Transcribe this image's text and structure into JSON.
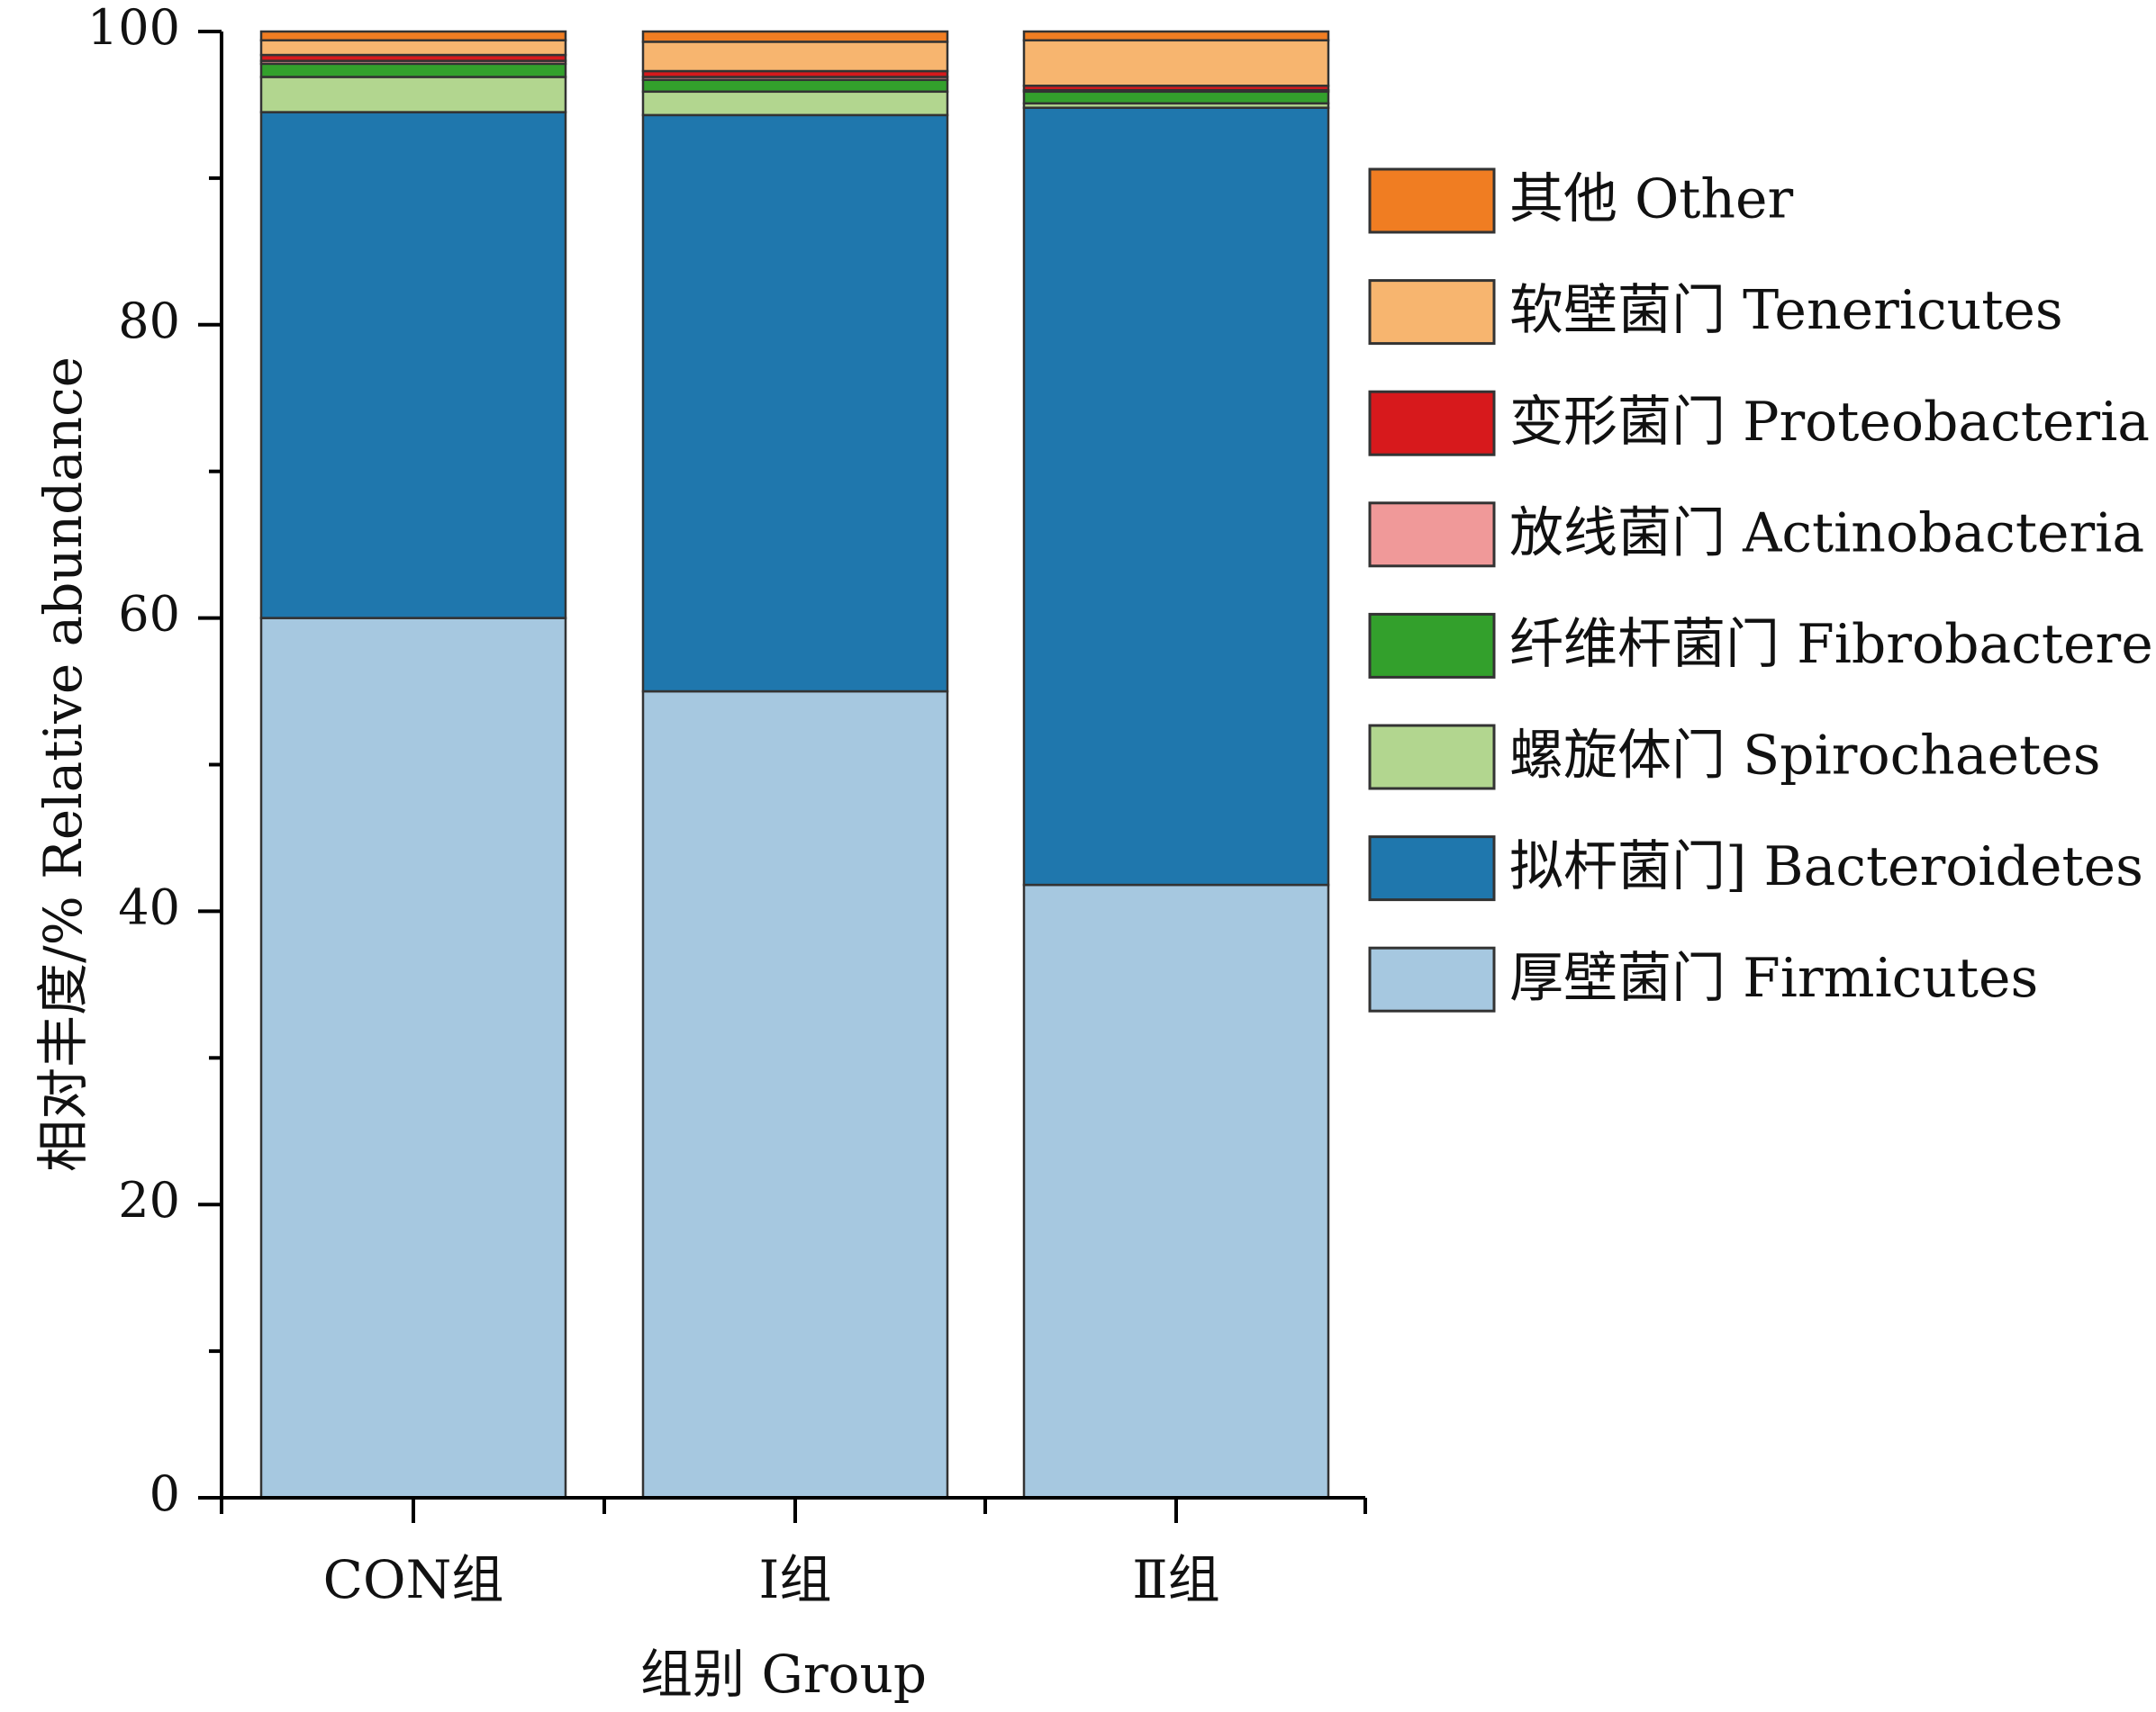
{
  "chart_data": {
    "type": "bar",
    "stacked": true,
    "categories": [
      "CON组",
      "Ⅰ组",
      "Ⅱ组"
    ],
    "xlabel": "组别 Group",
    "ylabel": "相对丰度/% Relative abundance",
    "ylim": [
      0,
      100
    ],
    "yticks": [
      "0",
      "20",
      "40",
      "60",
      "80",
      "100"
    ],
    "legend_position": "right",
    "series": [
      {
        "name": "厚壁菌门 Firmicutes",
        "color": "#a6c8e0",
        "values": [
          60.0,
          55.0,
          41.8
        ]
      },
      {
        "name": "拟杆菌门] Bacteroidetes",
        "color": "#1f77ad",
        "values": [
          34.5,
          39.3,
          53.0
        ]
      },
      {
        "name": "螺旋体门 Spirochaetes",
        "color": "#b2d68f",
        "values": [
          2.4,
          1.6,
          0.3
        ]
      },
      {
        "name": "纤维杆菌门 Fibrobacteres",
        "color": "#33a02c",
        "values": [
          0.9,
          0.8,
          0.8
        ]
      },
      {
        "name": "放线菌门 Actinobacteria",
        "color": "#f09999",
        "values": [
          0.2,
          0.2,
          0.1
        ]
      },
      {
        "name": "变形菌门 Proteobacteria",
        "color": "#d7191c",
        "values": [
          0.4,
          0.4,
          0.3
        ]
      },
      {
        "name": "软壁菌门 Tenericutes",
        "color": "#f7b56f",
        "values": [
          1.0,
          2.0,
          3.1
        ]
      },
      {
        "name": "其他 Other",
        "color": "#f07d22",
        "values": [
          0.6,
          0.7,
          0.6
        ]
      }
    ]
  }
}
